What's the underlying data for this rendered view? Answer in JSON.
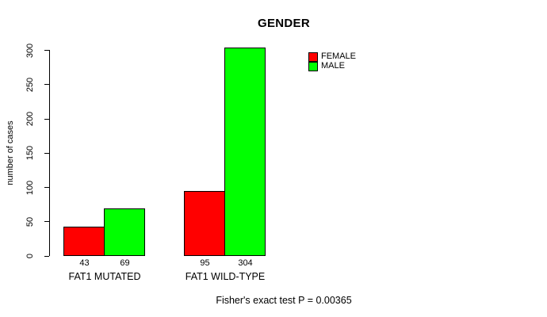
{
  "chart_data": {
    "type": "bar",
    "title": "GENDER",
    "ylabel": "number of cases",
    "xlabel": "",
    "categories": [
      "FAT1 MUTATED",
      "FAT1 WILD-TYPE"
    ],
    "series": [
      {
        "name": "FEMALE",
        "color": "#ff0000",
        "values": [
          43,
          95
        ]
      },
      {
        "name": "MALE",
        "color": "#00ff00",
        "values": [
          69,
          304
        ]
      }
    ],
    "yticks": [
      0,
      50,
      100,
      150,
      200,
      250,
      300
    ],
    "ylim": [
      0,
      300
    ],
    "bar_value_labels": [
      [
        43,
        69
      ],
      [
        95,
        304
      ]
    ],
    "legend_position": "top-right",
    "grid": false,
    "annotation": "Fisher's exact test P = 0.00365"
  }
}
